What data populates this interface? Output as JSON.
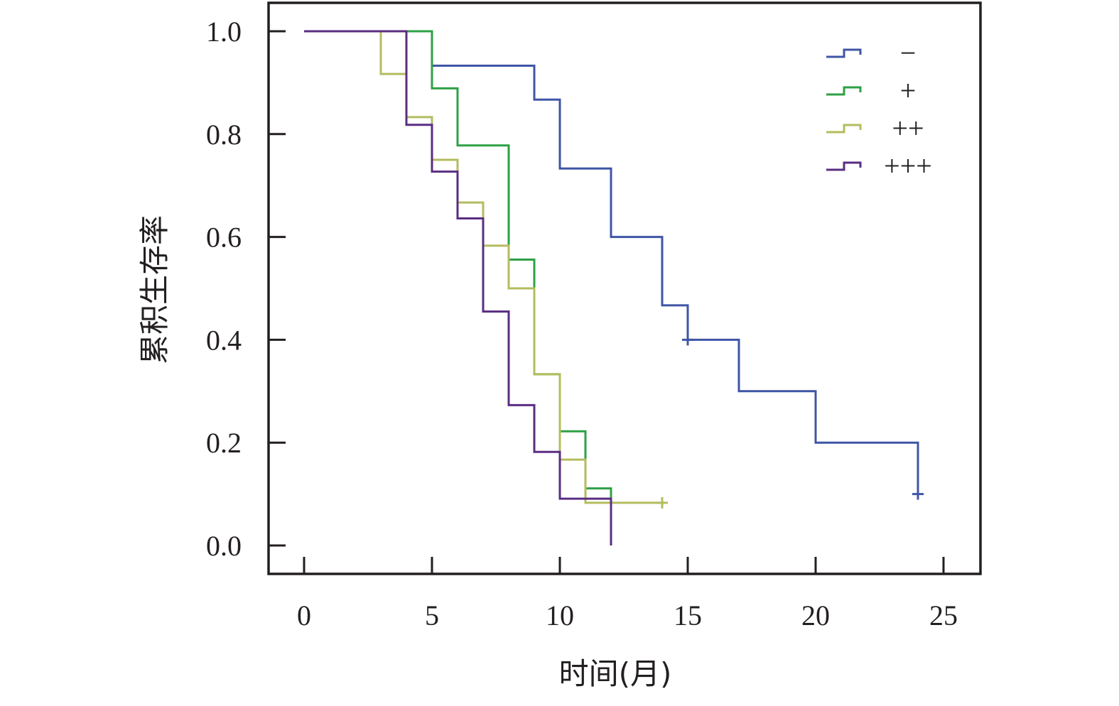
{
  "chart_data": {
    "type": "line",
    "subtype": "kaplan-meier step plot",
    "title": "",
    "xlabel": "时间(月)",
    "ylabel": "累积生存率",
    "xlim": [
      0,
      25
    ],
    "ylim": [
      0,
      1
    ],
    "x_ticks": [
      "0",
      "5",
      "10",
      "15",
      "20",
      "25"
    ],
    "y_ticks": [
      "0.0",
      "0.2",
      "0.4",
      "0.6",
      "0.8",
      "1.0"
    ],
    "grid": false,
    "legend_position": "top-right",
    "series": [
      {
        "name": "−",
        "color": "#3f55a6",
        "steps": [
          [
            0,
            1.0
          ],
          [
            5,
            0.933
          ],
          [
            9,
            0.867
          ],
          [
            10,
            0.733
          ],
          [
            12,
            0.6
          ],
          [
            14,
            0.467
          ],
          [
            15,
            0.4
          ],
          [
            17,
            0.3
          ],
          [
            20,
            0.2
          ],
          [
            24,
            0.1
          ]
        ],
        "censored": [
          [
            15,
            0.4
          ],
          [
            24,
            0.1
          ]
        ]
      },
      {
        "name": "+",
        "color": "#2ea046",
        "steps": [
          [
            0,
            1.0
          ],
          [
            5,
            0.889
          ],
          [
            6,
            0.778
          ],
          [
            8,
            0.556
          ],
          [
            9,
            0.333
          ],
          [
            10,
            0.222
          ],
          [
            11,
            0.111
          ],
          [
            12,
            0.0
          ]
        ],
        "censored": []
      },
      {
        "name": "++",
        "color": "#b4bc5e",
        "steps": [
          [
            0,
            1.0
          ],
          [
            3,
            0.917
          ],
          [
            4,
            0.833
          ],
          [
            5,
            0.75
          ],
          [
            6,
            0.667
          ],
          [
            7,
            0.583
          ],
          [
            8,
            0.5
          ],
          [
            9,
            0.333
          ],
          [
            10,
            0.167
          ],
          [
            11,
            0.083
          ],
          [
            14,
            0.083
          ]
        ],
        "censored": [
          [
            14,
            0.083
          ]
        ]
      },
      {
        "name": "+++",
        "color": "#5a2d82",
        "steps": [
          [
            0,
            1.0
          ],
          [
            4,
            0.818
          ],
          [
            5,
            0.727
          ],
          [
            6,
            0.636
          ],
          [
            7,
            0.455
          ],
          [
            8,
            0.273
          ],
          [
            9,
            0.182
          ],
          [
            10,
            0.091
          ],
          [
            12,
            0.0
          ]
        ],
        "censored": []
      }
    ]
  }
}
